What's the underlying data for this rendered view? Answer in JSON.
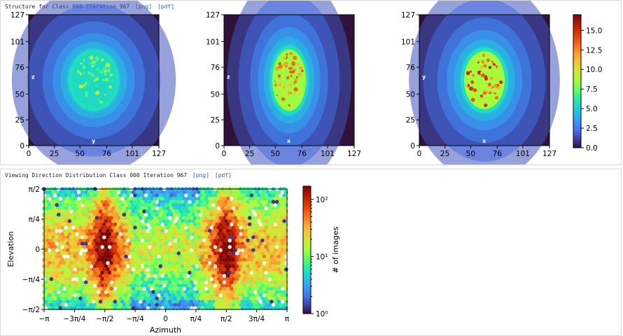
{
  "structure": {
    "title": "Structure for Class 000 Iteration 967",
    "png_link": "[png]",
    "pdf_link": "[pdf]"
  },
  "viewing": {
    "title": "Viewing Direction Distribution Class 000 Iteration 967",
    "png_link": "[png]",
    "pdf_link": "[pdf]"
  },
  "chart_data": [
    {
      "type": "heatmap",
      "title": "",
      "ticks": [
        "0",
        "25",
        "50",
        "76",
        "101",
        "127"
      ],
      "xlim": [
        0,
        127
      ],
      "ylim": [
        0,
        127
      ],
      "inner_xlabel": "y",
      "inner_ylabel": "z",
      "blob": {
        "cx": 63.5,
        "cy": 63.5,
        "rx": 25,
        "ry": 30,
        "peak_value": 9
      }
    },
    {
      "type": "heatmap",
      "title": "",
      "ticks": [
        "0",
        "25",
        "50",
        "76",
        "101",
        "127"
      ],
      "xlim": [
        0,
        127
      ],
      "ylim": [
        0,
        127
      ],
      "inner_xlabel": "x",
      "inner_ylabel": "z",
      "blob": {
        "cx": 63.5,
        "cy": 63.5,
        "rx": 19,
        "ry": 34,
        "peak_value": 14
      }
    },
    {
      "type": "heatmap",
      "title": "",
      "ticks": [
        "0",
        "25",
        "50",
        "76",
        "101",
        "127"
      ],
      "xlim": [
        0,
        127
      ],
      "ylim": [
        0,
        127
      ],
      "inner_xlabel": "x",
      "inner_ylabel": "y",
      "blob": {
        "cx": 63.5,
        "cy": 63.5,
        "rx": 23,
        "ry": 32,
        "peak_value": 15
      }
    },
    {
      "type": "colorbar",
      "ticks": [
        "0.0",
        "2.5",
        "5.0",
        "7.5",
        "10.0",
        "12.5",
        "15.0"
      ],
      "values": [
        0,
        2.5,
        5,
        7.5,
        10,
        12.5,
        15
      ],
      "range": [
        0,
        17
      ]
    },
    {
      "type": "heatmap",
      "xlabel": "Azimuth",
      "ylabel": "Elevation",
      "xticks": [
        "−π",
        "−3π/4",
        "−π/2",
        "−π/4",
        "0",
        "π/4",
        "π/2",
        "3π/4",
        "π"
      ],
      "yticks": [
        "−π/2",
        "−π/4",
        "0",
        "π/4",
        "π/2"
      ],
      "xlim": [
        -3.1416,
        3.1416
      ],
      "ylim": [
        -1.5708,
        1.5708
      ],
      "peak_azimuths": [
        -1.5708,
        1.5708
      ],
      "colorbar": {
        "label": "# of images",
        "ticks": [
          "10⁰",
          "10¹",
          "10²"
        ],
        "scale": "log",
        "range": [
          1,
          170
        ]
      }
    }
  ]
}
